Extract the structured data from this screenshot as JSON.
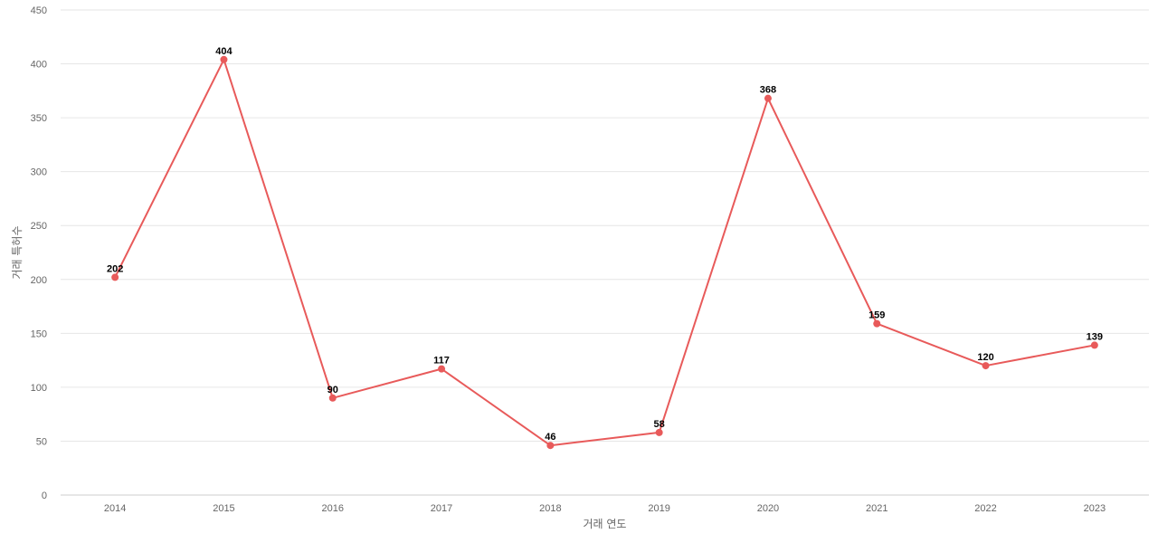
{
  "chart_data": {
    "type": "line",
    "x": [
      "2014",
      "2015",
      "2016",
      "2017",
      "2018",
      "2019",
      "2020",
      "2021",
      "2022",
      "2023"
    ],
    "series": [
      {
        "values": [
          202,
          404,
          90,
          117,
          46,
          58,
          368,
          159,
          120,
          139
        ],
        "color": "#e85a5a"
      }
    ],
    "xlabel": "거래 연도",
    "ylabel": "거래 특허수",
    "ylim": [
      0,
      450
    ],
    "yticks": [
      0,
      50,
      100,
      150,
      200,
      250,
      300,
      350,
      400,
      450
    ],
    "grid": true,
    "data_labels": true
  }
}
